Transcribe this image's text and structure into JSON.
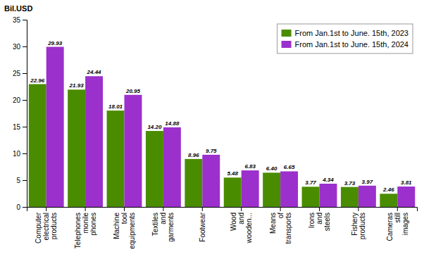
{
  "chart_data": {
    "type": "bar",
    "y_label": "Bil.USD",
    "categories": [
      "Computer\nelectrical\nproducts",
      "Telephones\nmonile\nphones",
      "Machine\ntool\nequipments",
      "Textiles\nand\ngarments",
      "Footwear",
      "Wood\nand\nwooden...",
      "Means\nof\ntransports",
      "Irons\nand\nsteels",
      "Fishery\nproducts",
      "Cameras\nstill\nimages"
    ],
    "series": [
      {
        "name": "From Jan.1st to June. 15th, 2023",
        "color": "#4a8c00",
        "values": [
          22.96,
          21.93,
          18.01,
          14.2,
          8.96,
          5.48,
          6.4,
          3.77,
          3.73,
          2.46
        ],
        "value_labels": [
          "22.96",
          "21.93",
          "18.01",
          "14.20",
          "8.96",
          "5.48",
          "6.40",
          "3.77",
          "3.73",
          "2.46"
        ]
      },
      {
        "name": "From Jan.1st to June. 15th, 2024",
        "color": "#9b30cc",
        "values": [
          29.93,
          24.44,
          20.95,
          14.88,
          9.75,
          6.83,
          6.65,
          4.34,
          3.97,
          3.81
        ],
        "value_labels": [
          "29.93",
          "24.44",
          "20.95",
          "14.88",
          "9.75",
          "6.83",
          "6.65",
          "4.34",
          "3.97",
          "3.81"
        ]
      }
    ],
    "ylim": [
      0,
      35
    ],
    "yticks": [
      0,
      5,
      10,
      15,
      20,
      25,
      30,
      35
    ],
    "data_labels": true,
    "legend": "upper right",
    "grid": false
  }
}
